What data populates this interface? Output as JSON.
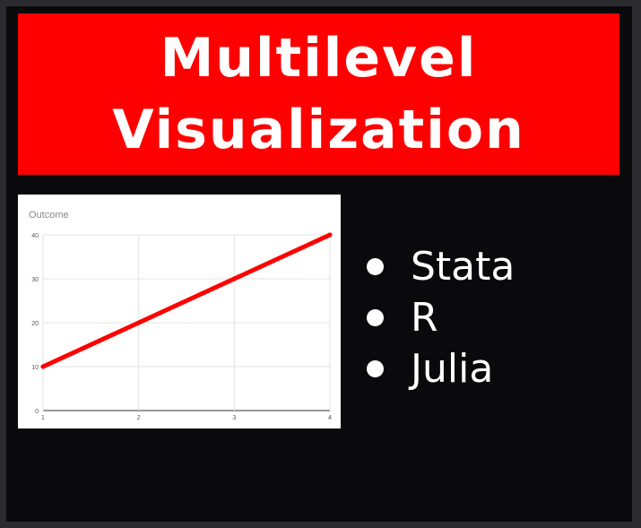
{
  "slide": {
    "title_lines": [
      "Multilevel",
      "Visualization"
    ],
    "title_bg": "#ff0000",
    "bullets": [
      "Stata",
      "R",
      "Julia"
    ]
  },
  "chart_data": {
    "type": "line",
    "title": "Outcome",
    "xlabel": "",
    "ylabel": "",
    "x": [
      1,
      2,
      3,
      4
    ],
    "series": [
      {
        "values": [
          10,
          20,
          30,
          40
        ],
        "color": "#ff0000"
      }
    ],
    "xlim": [
      1,
      4
    ],
    "ylim": [
      0,
      40
    ],
    "x_ticks": [
      "1",
      "2",
      "3",
      "4"
    ],
    "y_ticks": [
      "0",
      "10",
      "20",
      "30",
      "40"
    ],
    "grid": true,
    "legend": "none"
  }
}
